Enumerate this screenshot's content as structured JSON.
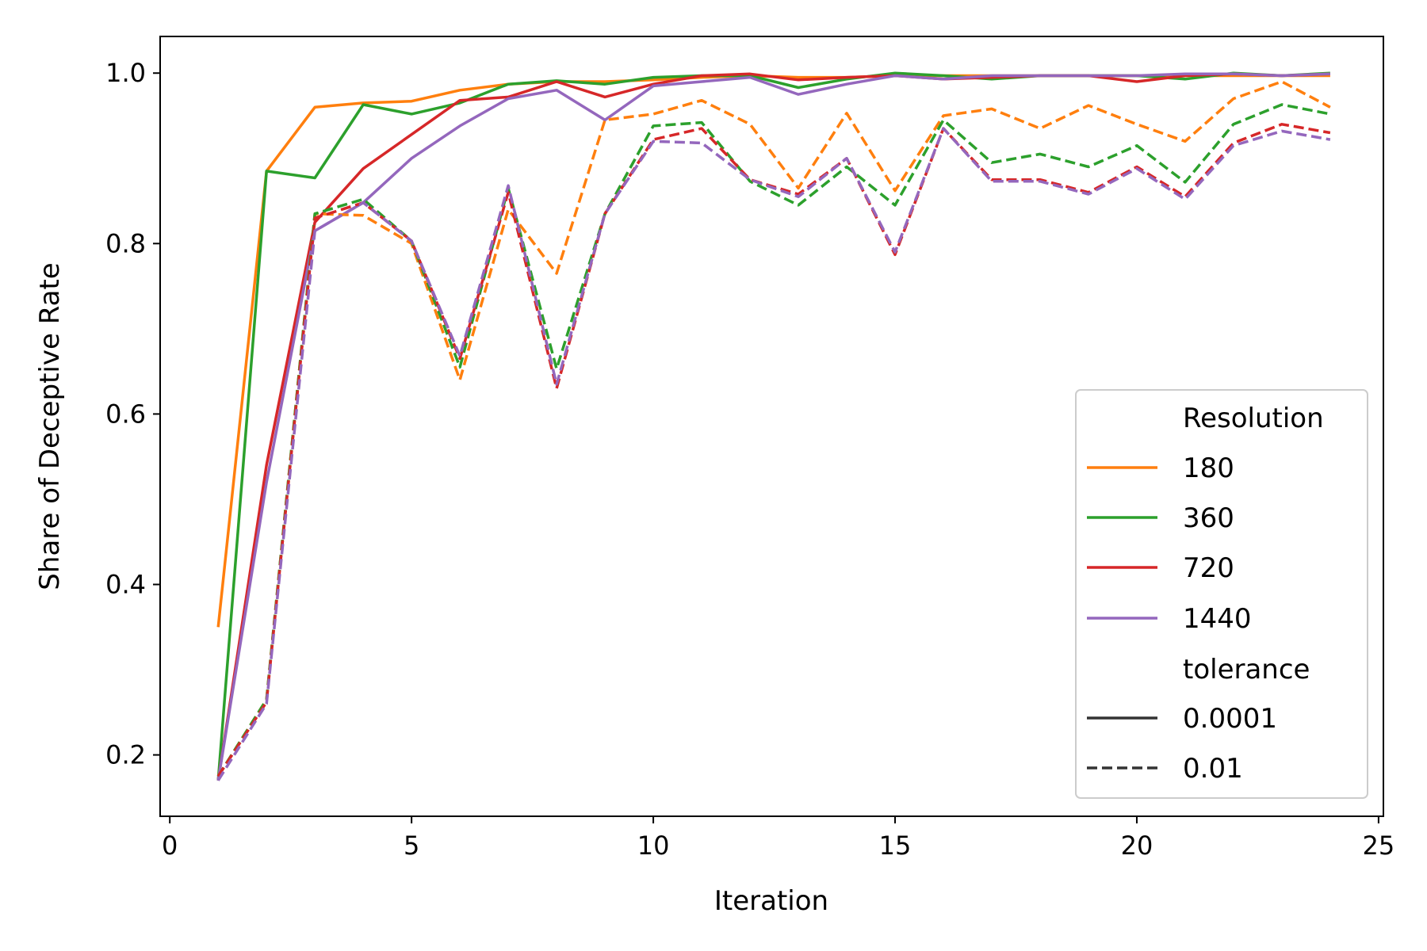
{
  "chart_data": {
    "type": "line",
    "xlabel": "Iteration",
    "ylabel": "Share of Deceptive Rate",
    "xlim": [
      -0.2,
      25.1
    ],
    "ylim": [
      0.128,
      1.043
    ],
    "xticks": [
      0,
      5,
      10,
      15,
      20,
      25
    ],
    "yticks": [
      0.2,
      0.4,
      0.6,
      0.8,
      1.0
    ],
    "xtick_labels": [
      "0",
      "5",
      "10",
      "15",
      "20",
      "25"
    ],
    "ytick_labels": [
      "0.2",
      "0.4",
      "0.6",
      "0.8",
      "1.0"
    ],
    "grid": false,
    "legend": {
      "placement": "lower right",
      "hue_title": "Resolution",
      "style_title": "tolerance",
      "hue_entries": [
        {
          "label": "180",
          "color": "#ff7f0e"
        },
        {
          "label": "360",
          "color": "#2ca02c"
        },
        {
          "label": "720",
          "color": "#d62728"
        },
        {
          "label": "1440",
          "color": "#9467bd"
        }
      ],
      "style_entries": [
        {
          "label": "0.0001",
          "style": "solid"
        },
        {
          "label": "0.01",
          "style": "dashed"
        }
      ]
    },
    "x": [
      1,
      2,
      3,
      4,
      5,
      6,
      7,
      8,
      9,
      10,
      11,
      12,
      13,
      14,
      15,
      16,
      17,
      18,
      19,
      20,
      21,
      22,
      23,
      24
    ],
    "series": [
      {
        "name": "180",
        "tolerance": "0.0001",
        "color": "#ff7f0e",
        "style": "solid",
        "values": [
          0.35,
          0.885,
          0.96,
          0.965,
          0.967,
          0.98,
          0.987,
          0.99,
          0.99,
          0.992,
          0.995,
          0.997,
          0.995,
          0.995,
          0.997,
          0.997,
          0.997,
          0.997,
          0.997,
          0.997,
          0.997,
          0.997,
          0.997,
          0.997
        ]
      },
      {
        "name": "360",
        "tolerance": "0.0001",
        "color": "#2ca02c",
        "style": "solid",
        "values": [
          0.17,
          0.885,
          0.877,
          0.963,
          0.952,
          0.965,
          0.987,
          0.991,
          0.987,
          0.995,
          0.997,
          0.997,
          0.983,
          0.993,
          1.0,
          0.997,
          0.993,
          0.997,
          0.997,
          0.997,
          0.993,
          1.0,
          0.997,
          1.0
        ]
      },
      {
        "name": "720",
        "tolerance": "0.0001",
        "color": "#d62728",
        "style": "solid",
        "values": [
          0.17,
          0.54,
          0.825,
          0.888,
          0.928,
          0.968,
          0.972,
          0.99,
          0.972,
          0.987,
          0.997,
          0.999,
          0.992,
          0.995,
          0.997,
          0.993,
          0.995,
          0.997,
          0.997,
          0.99,
          0.997,
          0.999,
          0.997,
          0.999
        ]
      },
      {
        "name": "1440",
        "tolerance": "0.0001",
        "color": "#9467bd",
        "style": "solid",
        "values": [
          0.17,
          0.52,
          0.815,
          0.848,
          0.9,
          0.938,
          0.97,
          0.98,
          0.945,
          0.985,
          0.99,
          0.995,
          0.975,
          0.987,
          0.997,
          0.993,
          0.997,
          0.997,
          0.997,
          0.997,
          0.999,
          0.999,
          0.997,
          0.999
        ]
      },
      {
        "name": "180",
        "tolerance": "0.01",
        "color": "#ff7f0e",
        "style": "dashed",
        "values": [
          0.175,
          0.265,
          0.835,
          0.833,
          0.8,
          0.64,
          0.84,
          0.765,
          0.945,
          0.952,
          0.968,
          0.94,
          0.865,
          0.953,
          0.862,
          0.95,
          0.958,
          0.935,
          0.962,
          0.94,
          0.92,
          0.97,
          0.99,
          0.96
        ]
      },
      {
        "name": "360",
        "tolerance": "0.01",
        "color": "#2ca02c",
        "style": "dashed",
        "values": [
          0.175,
          0.265,
          0.835,
          0.852,
          0.803,
          0.655,
          0.865,
          0.653,
          0.835,
          0.938,
          0.942,
          0.873,
          0.845,
          0.89,
          0.845,
          0.945,
          0.895,
          0.905,
          0.89,
          0.915,
          0.872,
          0.94,
          0.963,
          0.952
        ]
      },
      {
        "name": "720",
        "tolerance": "0.01",
        "color": "#d62728",
        "style": "dashed",
        "values": [
          0.175,
          0.262,
          0.83,
          0.848,
          0.803,
          0.665,
          0.86,
          0.63,
          0.835,
          0.922,
          0.935,
          0.875,
          0.858,
          0.9,
          0.787,
          0.935,
          0.875,
          0.875,
          0.86,
          0.89,
          0.855,
          0.918,
          0.94,
          0.93
        ]
      },
      {
        "name": "1440",
        "tolerance": "0.01",
        "color": "#9467bd",
        "style": "dashed",
        "values": [
          0.17,
          0.26,
          0.815,
          0.848,
          0.803,
          0.668,
          0.868,
          0.635,
          0.835,
          0.92,
          0.918,
          0.875,
          0.855,
          0.9,
          0.79,
          0.935,
          0.873,
          0.873,
          0.858,
          0.888,
          0.852,
          0.915,
          0.932,
          0.922
        ]
      }
    ]
  }
}
